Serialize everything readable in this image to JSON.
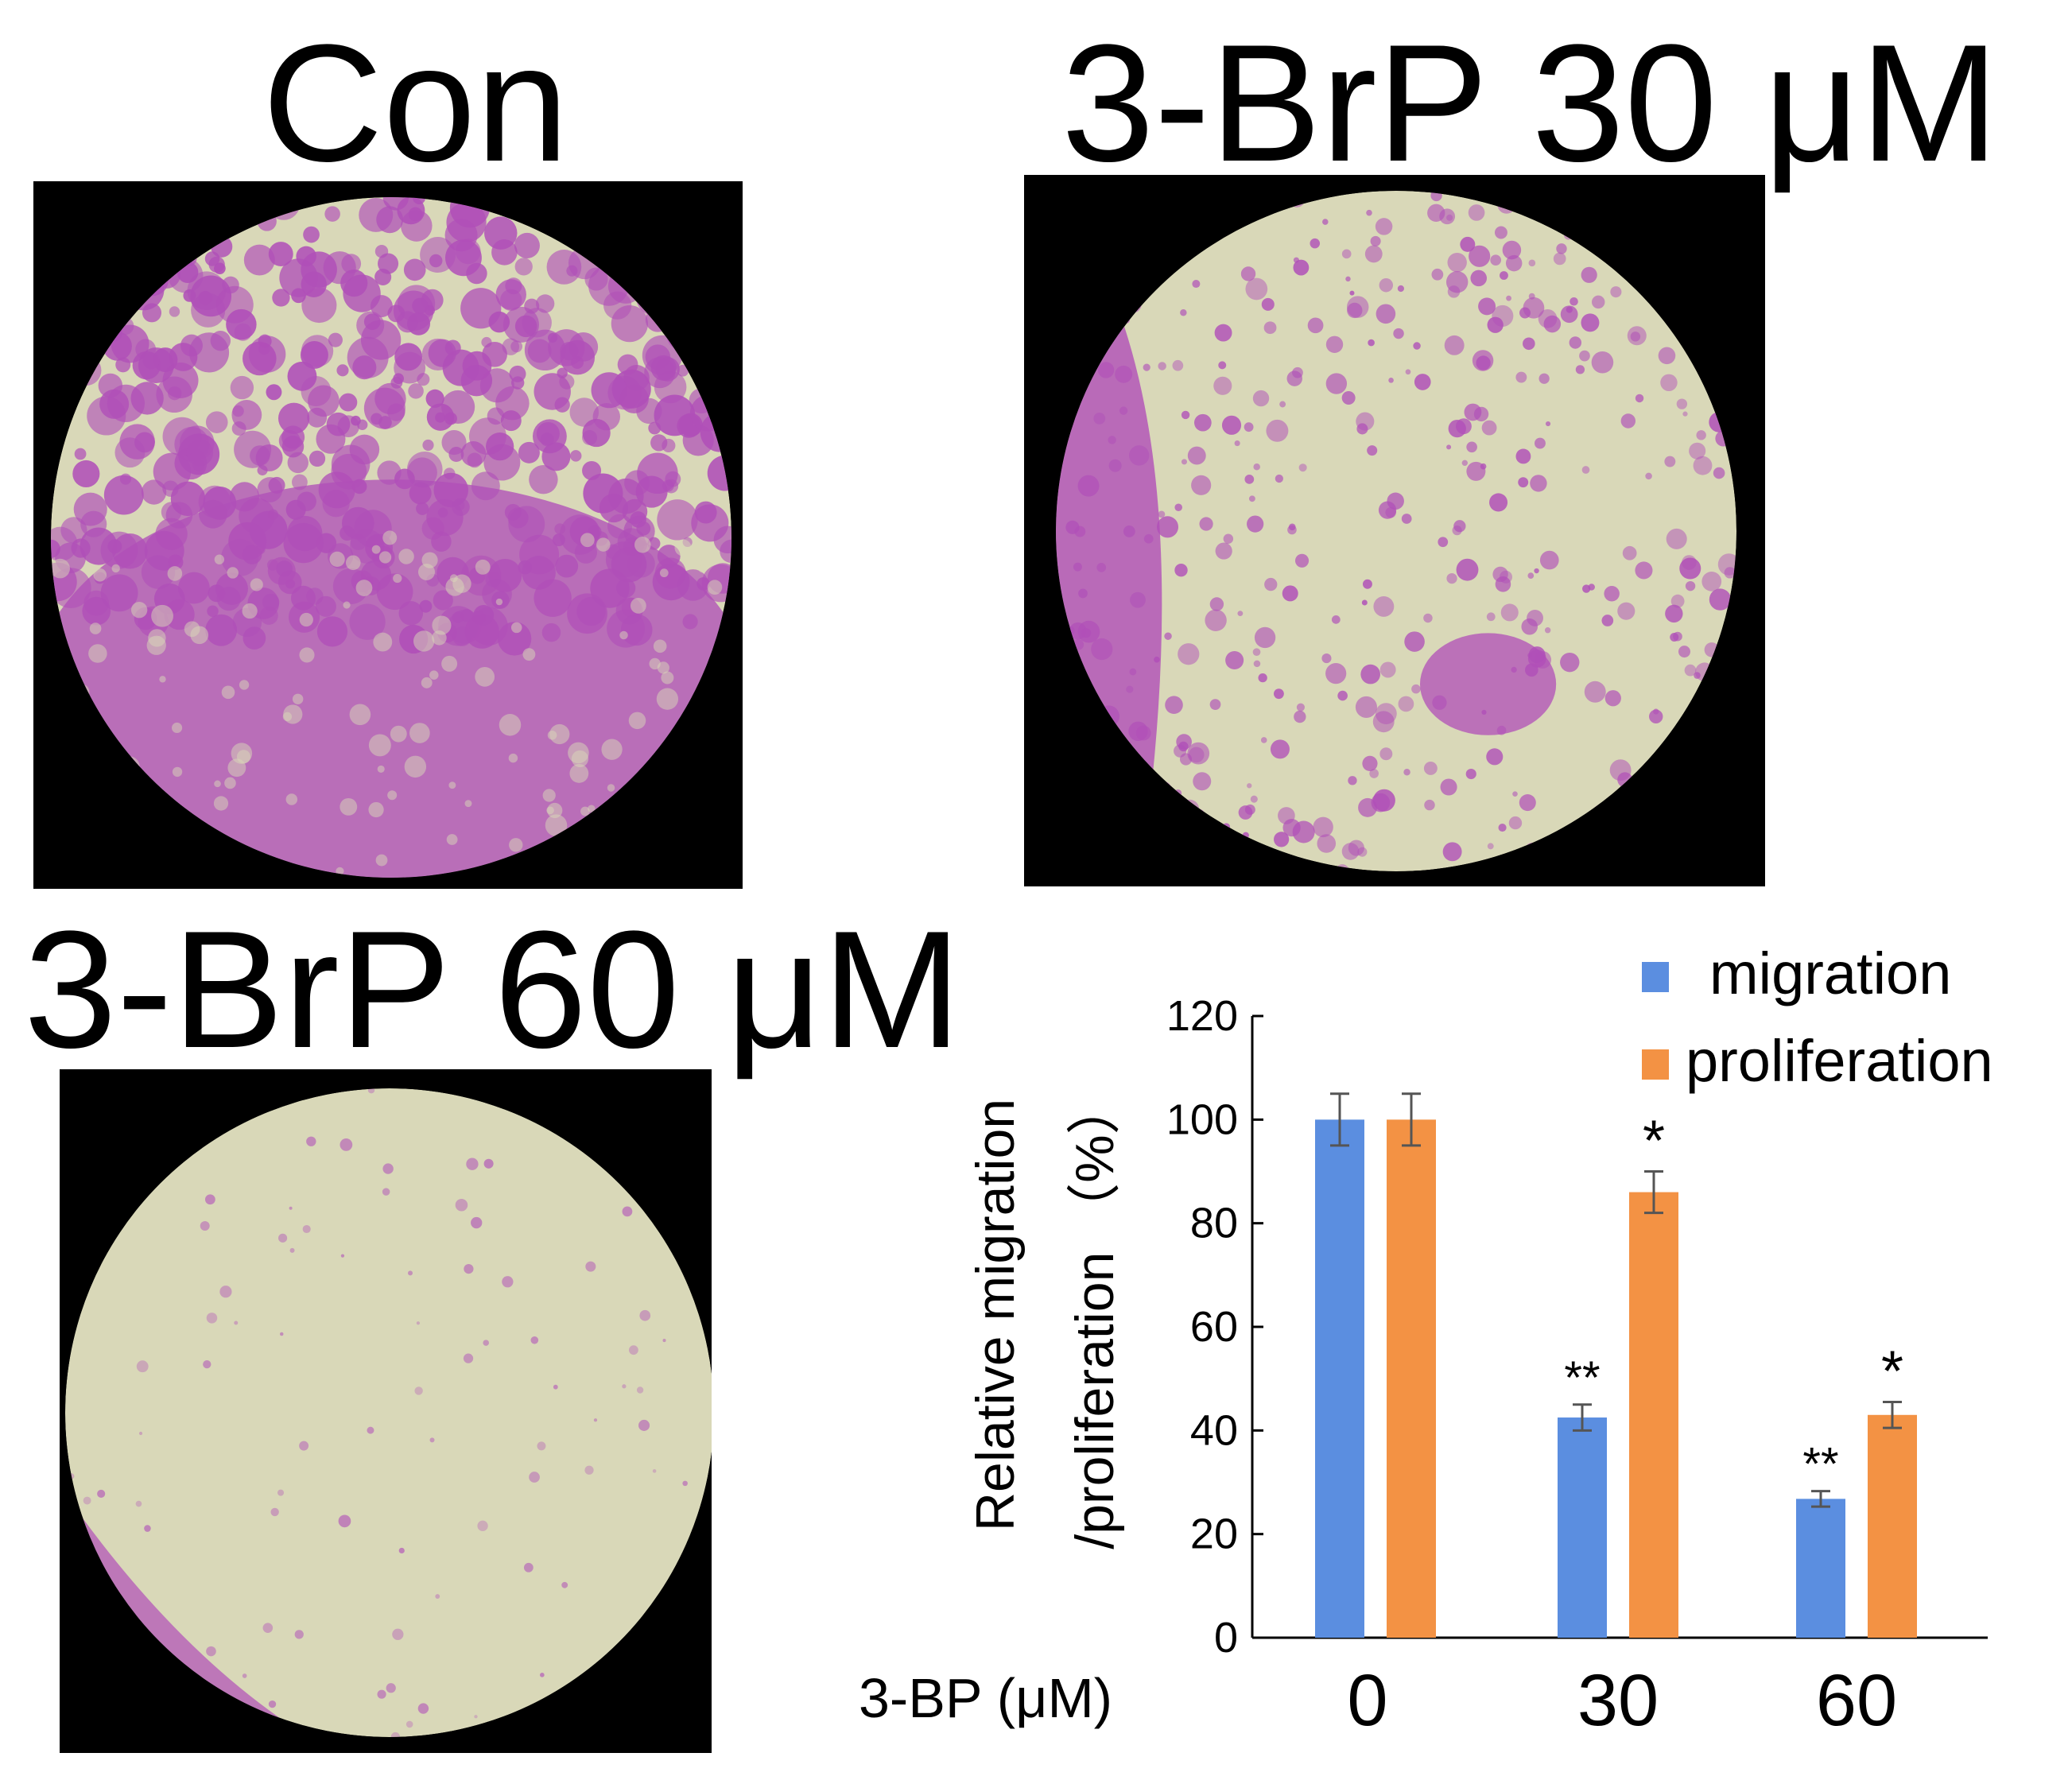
{
  "panels": [
    {
      "title": "Con",
      "stain": "dense-lower"
    },
    {
      "title": "3-BrP  30 μM",
      "stain": "left-edge-sparse"
    },
    {
      "title": "3-BrP 60 μM",
      "stain": "very-sparse"
    }
  ],
  "colors": {
    "field": "#d9d8b8",
    "stain": "#b04fb8",
    "migration": "#5b8ee0",
    "proliferation": "#f39244",
    "background": "#000000"
  },
  "chart_data": {
    "type": "bar",
    "categories": [
      "0",
      "30",
      "60"
    ],
    "xlabel": "3-BP (μM)",
    "ylabel_line1": "Relative migration",
    "ylabel_line2": "/proliferation （%）",
    "ylim": [
      0,
      120
    ],
    "yticks": [
      "0",
      "20",
      "40",
      "60",
      "80",
      "100",
      "120"
    ],
    "legend_position": "top-right",
    "series": [
      {
        "name": "migration",
        "values": [
          100,
          42.5,
          26.8
        ],
        "errors": [
          5,
          2.5,
          1.5
        ],
        "significance": [
          "",
          "**",
          "**"
        ]
      },
      {
        "name": "proliferation",
        "values": [
          100,
          86,
          43
        ],
        "errors": [
          5,
          4,
          2.5
        ],
        "significance": [
          "",
          "*",
          "*"
        ]
      }
    ]
  }
}
